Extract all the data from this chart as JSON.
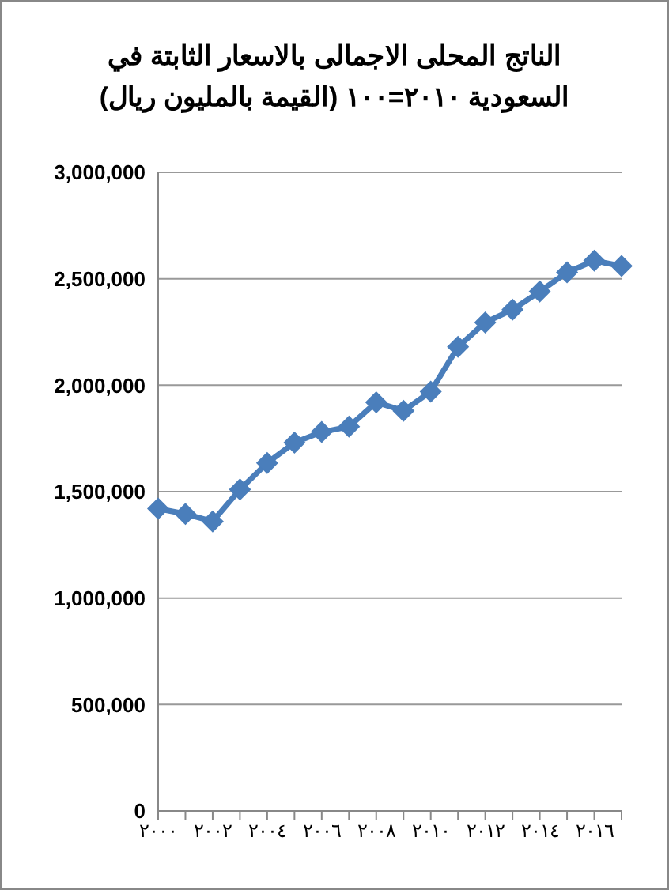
{
  "chart_data": {
    "type": "line",
    "title": "الناتج المحلى الاجمالى بالاسعار الثابتة في\nالسعودية ٢٠١٠=١٠٠ (القيمة بالمليون ريال)",
    "categories": [
      "٢٠٠٠",
      null,
      "٢٠٠٢",
      null,
      "٢٠٠٤",
      null,
      "٢٠٠٦",
      null,
      "٢٠٠٨",
      null,
      "٢٠١٠",
      null,
      "٢٠١٢",
      null,
      "٢٠١٤",
      null,
      "٢٠١٦",
      null
    ],
    "series": [
      {
        "color": "#4a7ebb",
        "values": [
          1420000,
          1395000,
          1360000,
          1510000,
          1635000,
          1730000,
          1780000,
          1805000,
          1920000,
          1880000,
          1970000,
          2180000,
          2295000,
          2355000,
          2440000,
          2530000,
          2585000,
          2560000
        ]
      }
    ],
    "ylim": [
      0,
      3000000
    ],
    "yticks": [
      0,
      {
        "value": 500000,
        "label": "500,000"
      },
      {
        "value": 1000000,
        "label": "1,000,000"
      },
      {
        "value": 1500000,
        "label": "1,500,000"
      },
      {
        "value": 2000000,
        "label": "2,000,000"
      },
      {
        "value": 2500000,
        "label": "2,500,000"
      },
      {
        "value": 3000000,
        "label": "3,000,000"
      }
    ],
    "grid": "y",
    "legend": false,
    "marker": "diamond",
    "line_style": "solid"
  }
}
